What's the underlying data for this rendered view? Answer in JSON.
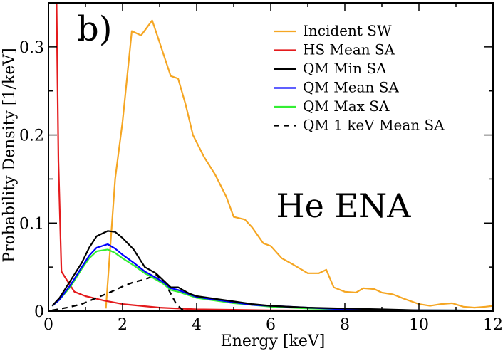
{
  "chart_data": {
    "type": "line",
    "panel_label": "b)",
    "annotation": "He ENA",
    "xlabel": "Energy [keV]",
    "ylabel": "Probability Density [1/keV]",
    "xlim": [
      0,
      12
    ],
    "ylim": [
      0,
      0.35
    ],
    "xticks": [
      {
        "value": 0,
        "label": "0"
      },
      {
        "value": 2,
        "label": "2"
      },
      {
        "value": 4,
        "label": "4"
      },
      {
        "value": 6,
        "label": "6"
      },
      {
        "value": 8,
        "label": "8"
      },
      {
        "value": 10,
        "label": "10"
      },
      {
        "value": 12,
        "label": "12"
      }
    ],
    "yticks": [
      {
        "value": 0,
        "label": "0"
      },
      {
        "value": 0.1,
        "label": "0.1"
      },
      {
        "value": 0.2,
        "label": "0.2"
      },
      {
        "value": 0.3,
        "label": "0.3"
      }
    ],
    "legend_position": "top-right",
    "series": [
      {
        "name": "Incident SW",
        "color": "#f5a623",
        "dash": "solid",
        "x": [
          1.55,
          1.8,
          2.0,
          2.25,
          2.5,
          2.8,
          3.0,
          3.3,
          3.5,
          3.7,
          3.9,
          4.2,
          4.5,
          4.8,
          5.0,
          5.3,
          5.5,
          5.8,
          6.0,
          6.3,
          6.6,
          7.0,
          7.3,
          7.5,
          7.7,
          8.0,
          8.3,
          8.5,
          8.8,
          9.0,
          9.3,
          9.6,
          10.0,
          10.3,
          10.6,
          10.9,
          11.2,
          11.5,
          11.8,
          12.0
        ],
        "y": [
          0.003,
          0.15,
          0.215,
          0.318,
          0.313,
          0.33,
          0.305,
          0.267,
          0.264,
          0.235,
          0.2,
          0.175,
          0.155,
          0.13,
          0.107,
          0.104,
          0.095,
          0.077,
          0.074,
          0.06,
          0.053,
          0.043,
          0.043,
          0.047,
          0.027,
          0.022,
          0.021,
          0.026,
          0.025,
          0.021,
          0.019,
          0.014,
          0.008,
          0.006,
          0.008,
          0.009,
          0.005,
          0.004,
          0.005,
          0.006
        ]
      },
      {
        "name": "HS Mean SA",
        "color": "#e41a1c",
        "dash": "solid",
        "x": [
          0.22,
          0.27,
          0.35,
          0.5,
          0.7,
          1.0,
          1.5,
          2.0,
          2.5,
          3.0,
          3.5,
          4.0,
          5.0,
          6.0,
          8.0,
          10.0,
          12.0
        ],
        "y": [
          0.35,
          0.17,
          0.045,
          0.035,
          0.022,
          0.017,
          0.012,
          0.008,
          0.006,
          0.004,
          0.003,
          0.002,
          0.0015,
          0.001,
          0.0005,
          0.0003,
          0.0002
        ]
      },
      {
        "name": "QM Min SA",
        "color": "#000000",
        "dash": "solid",
        "x": [
          0.1,
          0.3,
          0.6,
          0.9,
          1.1,
          1.3,
          1.6,
          1.8,
          2.0,
          2.3,
          2.6,
          2.9,
          3.1,
          3.3,
          3.5,
          3.8,
          4.0,
          4.5,
          5.0,
          5.5,
          6.0,
          7.0,
          8.0,
          9.0,
          10.0,
          11.0,
          12.0
        ],
        "y": [
          0.006,
          0.015,
          0.035,
          0.055,
          0.072,
          0.085,
          0.091,
          0.09,
          0.083,
          0.07,
          0.05,
          0.043,
          0.035,
          0.027,
          0.027,
          0.02,
          0.017,
          0.014,
          0.011,
          0.008,
          0.006,
          0.004,
          0.003,
          0.002,
          0.001,
          0.0008,
          0.0005
        ]
      },
      {
        "name": "QM Mean SA",
        "color": "#0000ff",
        "dash": "solid",
        "x": [
          0.1,
          0.3,
          0.6,
          0.9,
          1.1,
          1.3,
          1.6,
          1.8,
          2.0,
          2.3,
          2.6,
          2.9,
          3.1,
          3.3,
          3.5,
          4.0,
          4.5,
          5.0,
          5.5,
          6.0,
          7.0,
          8.0,
          9.0,
          10.0,
          11.0,
          12.0
        ],
        "y": [
          0.006,
          0.013,
          0.03,
          0.05,
          0.063,
          0.072,
          0.076,
          0.071,
          0.064,
          0.055,
          0.045,
          0.038,
          0.033,
          0.026,
          0.024,
          0.016,
          0.013,
          0.01,
          0.007,
          0.006,
          0.004,
          0.002,
          0.0015,
          0.001,
          0.0008,
          0.0005
        ]
      },
      {
        "name": "QM Max SA",
        "color": "#33ee33",
        "dash": "solid",
        "x": [
          0.1,
          0.3,
          0.6,
          0.9,
          1.1,
          1.3,
          1.6,
          1.8,
          2.0,
          2.3,
          2.6,
          2.9,
          3.1,
          3.3,
          3.5,
          4.0,
          4.5,
          5.0,
          5.5,
          6.0,
          7.0,
          8.0,
          9.0,
          10.0,
          11.0,
          12.0
        ],
        "y": [
          0.006,
          0.013,
          0.028,
          0.048,
          0.06,
          0.068,
          0.07,
          0.066,
          0.06,
          0.052,
          0.043,
          0.036,
          0.031,
          0.024,
          0.022,
          0.015,
          0.012,
          0.009,
          0.007,
          0.005,
          0.003,
          0.002,
          0.0015,
          0.001,
          0.0008,
          0.0005
        ]
      },
      {
        "name": "QM 1 keV Mean SA",
        "color": "#000000",
        "dash": "dashed",
        "x": [
          0.1,
          0.5,
          0.9,
          1.3,
          1.7,
          2.0,
          2.3,
          2.6,
          2.9,
          3.1,
          3.3,
          3.45,
          3.6,
          3.8,
          4.0
        ],
        "y": [
          0.001,
          0.004,
          0.008,
          0.015,
          0.022,
          0.028,
          0.033,
          0.036,
          0.041,
          0.035,
          0.02,
          0.008,
          0.002,
          0.0005,
          0.0002
        ]
      }
    ]
  }
}
